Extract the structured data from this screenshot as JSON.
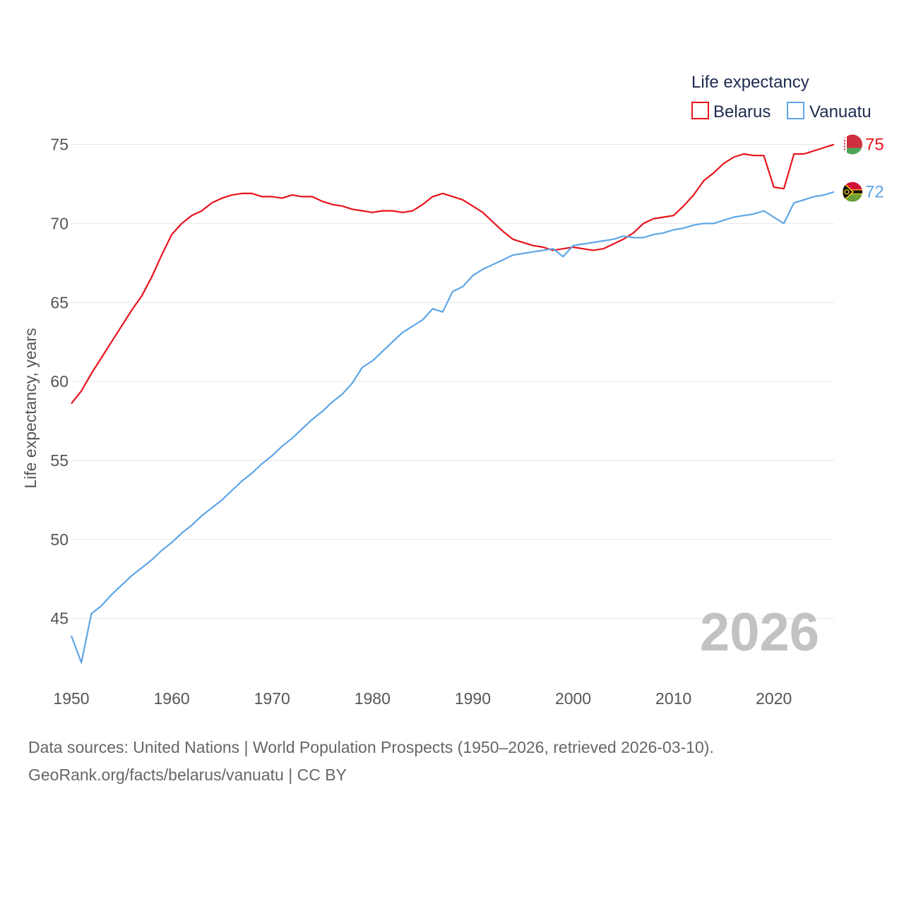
{
  "chart_data": {
    "type": "line",
    "legend_title": "Life expectancy",
    "ylabel": "Life expectancy, years",
    "xlabel": "",
    "x_range": [
      1950,
      2026
    ],
    "ylim": [
      41.5,
      76.5
    ],
    "y_ticks": [
      45,
      50,
      55,
      60,
      65,
      70,
      75
    ],
    "x_ticks": [
      1950,
      1960,
      1970,
      1980,
      1990,
      2000,
      2010,
      2020
    ],
    "year_label": "2026",
    "series": [
      {
        "name": "Belarus",
        "color": "#e8131b",
        "end_label": "75",
        "flag": "belarus-flag",
        "x": [
          1950,
          1951,
          1952,
          1953,
          1954,
          1955,
          1956,
          1957,
          1958,
          1959,
          1960,
          1961,
          1962,
          1963,
          1964,
          1965,
          1966,
          1967,
          1968,
          1969,
          1970,
          1971,
          1972,
          1973,
          1974,
          1975,
          1976,
          1977,
          1978,
          1979,
          1980,
          1981,
          1982,
          1983,
          1984,
          1985,
          1986,
          1987,
          1988,
          1989,
          1990,
          1991,
          1992,
          1993,
          1994,
          1995,
          1996,
          1997,
          1998,
          1999,
          2000,
          2001,
          2002,
          2003,
          2004,
          2005,
          2006,
          2007,
          2008,
          2009,
          2010,
          2011,
          2012,
          2013,
          2014,
          2015,
          2016,
          2017,
          2018,
          2019,
          2020,
          2021,
          2022,
          2023,
          2024,
          2025,
          2026
        ],
        "values": [
          58.6,
          59.4,
          60.5,
          61.5,
          62.5,
          63.5,
          64.5,
          65.4,
          66.6,
          68.0,
          69.3,
          70.0,
          70.5,
          70.8,
          71.3,
          71.6,
          71.8,
          71.9,
          71.9,
          71.7,
          71.7,
          71.6,
          71.8,
          71.7,
          71.7,
          71.4,
          71.2,
          71.1,
          70.9,
          70.8,
          70.7,
          70.8,
          70.8,
          70.7,
          70.8,
          71.2,
          71.7,
          71.9,
          71.7,
          71.5,
          71.1,
          70.7,
          70.1,
          69.5,
          69.0,
          68.8,
          68.6,
          68.5,
          68.3,
          68.4,
          68.5,
          68.4,
          68.3,
          68.4,
          68.7,
          69.0,
          69.4,
          70.0,
          70.3,
          70.4,
          70.5,
          71.1,
          71.8,
          72.7,
          73.2,
          73.8,
          74.2,
          74.4,
          74.3,
          74.3,
          72.3,
          72.2,
          74.4,
          74.4,
          74.6,
          74.8,
          75.0
        ]
      },
      {
        "name": "Vanuatu",
        "color": "#5fa6e6",
        "end_label": "72",
        "flag": "vanuatu-flag",
        "x": [
          1950,
          1951,
          1952,
          1953,
          1954,
          1955,
          1956,
          1957,
          1958,
          1959,
          1960,
          1961,
          1962,
          1963,
          1964,
          1965,
          1966,
          1967,
          1968,
          1969,
          1970,
          1971,
          1972,
          1973,
          1974,
          1975,
          1976,
          1977,
          1978,
          1979,
          1980,
          1981,
          1982,
          1983,
          1984,
          1985,
          1986,
          1987,
          1988,
          1989,
          1990,
          1991,
          1992,
          1993,
          1994,
          1995,
          1996,
          1997,
          1998,
          1999,
          2000,
          2001,
          2002,
          2003,
          2004,
          2005,
          2006,
          2007,
          2008,
          2009,
          2010,
          2011,
          2012,
          2013,
          2014,
          2015,
          2016,
          2017,
          2018,
          2019,
          2020,
          2021,
          2022,
          2023,
          2024,
          2025,
          2026
        ],
        "values": [
          43.9,
          42.2,
          45.3,
          45.8,
          46.5,
          47.1,
          47.7,
          48.2,
          48.7,
          49.3,
          49.8,
          50.4,
          50.9,
          51.5,
          52.0,
          52.5,
          53.1,
          53.7,
          54.2,
          54.8,
          55.3,
          55.9,
          56.4,
          57.0,
          57.6,
          58.1,
          58.7,
          59.2,
          59.9,
          60.9,
          61.3,
          61.9,
          62.5,
          63.1,
          63.5,
          63.9,
          64.6,
          64.4,
          65.7,
          66.0,
          66.7,
          67.1,
          67.4,
          67.7,
          68.0,
          68.1,
          68.2,
          68.3,
          68.4,
          67.9,
          68.6,
          68.7,
          68.8,
          68.9,
          69.0,
          69.2,
          69.1,
          69.1,
          69.3,
          69.4,
          69.6,
          69.7,
          69.9,
          70.0,
          70.0,
          70.2,
          70.4,
          70.5,
          70.6,
          70.8,
          70.4,
          70.0,
          71.3,
          71.5,
          71.7,
          71.8,
          72.0
        ]
      }
    ]
  },
  "source": {
    "line1": "Data sources: United Nations | World Population Prospects (1950–2026, retrieved 2026-03-10).",
    "line2": "GeoRank.org/facts/belarus/vanuatu | CC BY"
  }
}
